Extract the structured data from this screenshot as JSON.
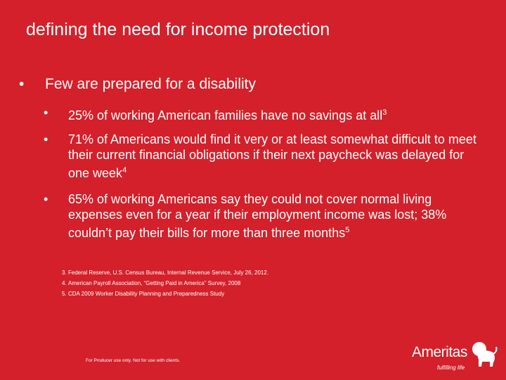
{
  "title": "defining the need for income protection",
  "bullet": {
    "text": "Few are prepared for a disability",
    "sub_bullets": [
      {
        "text": "25% of working American families have no savings at all",
        "note": "3"
      },
      {
        "text": "71% of Americans would find it very or at least somewhat difficult to meet their current financial obligations if their next paycheck was delayed for one week",
        "note": "4"
      },
      {
        "text": "65% of working Americans say they could not cover normal living expenses even for a year if their employment income was lost; 38% couldn’t pay their bills for more than three months",
        "note": "5"
      }
    ]
  },
  "footnotes": [
    {
      "number": "3.",
      "text": "Federal Reserve, U.S. Census Bureau, Internal Revenue Service, July 26, 2012."
    },
    {
      "number": "4.",
      "text": "American Payroll Association, “Getting Paid in America” Survey, 2008"
    },
    {
      "number": "5.",
      "text": "CDA 2009 Worker Disability Planning and Preparedness Study"
    }
  ],
  "footer": "For Producer use only. Not for use with clients.",
  "logo": {
    "name": "Ameritas",
    "tagline": "fulfilling life"
  }
}
